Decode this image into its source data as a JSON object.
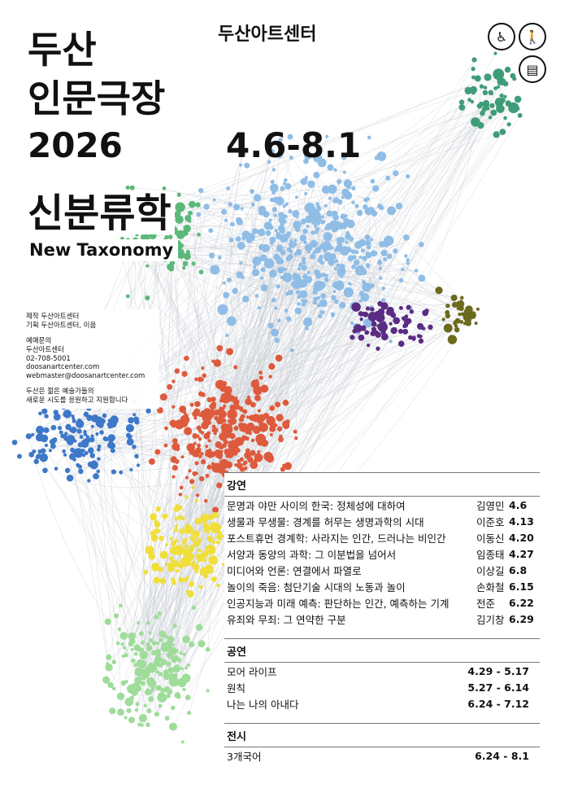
{
  "header": {
    "title_lines": [
      "두산",
      "인문극장",
      "2026"
    ],
    "organizer": "두산아트센터",
    "dates": "4.6-8.1",
    "theme_ko": "신분류학",
    "theme_en": "New Taxonomy"
  },
  "accessibility_icons": [
    "wheelchair-icon",
    "blind-cane-icon",
    "caption-icon"
  ],
  "info": {
    "credits": [
      "제작 두산아트센터",
      "기획 두산아트센터, 이음"
    ],
    "contact": [
      "예매문의",
      "두산아트센터",
      "02-708-5001",
      "doosanartcenter.com",
      "webmaster@doosanartcenter.com"
    ],
    "sponsor": [
      "두산은 젊은 예술가들의",
      "새로운 시도를 응원하고 지원합니다"
    ]
  },
  "program": {
    "lectures": {
      "heading": "강연",
      "items": [
        {
          "title": "문명과 야만 사이의 한국: 정체성에 대하여",
          "speaker": "김영민",
          "date": "4.6"
        },
        {
          "title": "생물과 무생물: 경계를 허무는 생명과학의 시대",
          "speaker": "이준호",
          "date": "4.13"
        },
        {
          "title": "포스트휴먼 경계학: 사라지는 인간, 드러나는 비인간",
          "speaker": "이동신",
          "date": "4.20"
        },
        {
          "title": "서양과 동양의 과학: 그 이분법을 넘어서",
          "speaker": "임종태",
          "date": "4.27"
        },
        {
          "title": "미디어와 언론: 연결에서 파열로",
          "speaker": "이상길",
          "date": "6.8"
        },
        {
          "title": "놀이의 죽음: 첨단기술 시대의 노동과 놀이",
          "speaker": "손화철",
          "date": "6.15"
        },
        {
          "title": "인공지능과 미래 예측: 판단하는 인간, 예측하는 기계",
          "speaker": "전준",
          "date": "6.22"
        },
        {
          "title": "유죄와 무죄: 그 연약한 구분",
          "speaker": "김기창",
          "date": "6.29"
        }
      ]
    },
    "performances": {
      "heading": "공연",
      "items": [
        {
          "title": "모어 라이프",
          "dates": "4.29 - 5.17"
        },
        {
          "title": "원칙",
          "dates": "5.27 - 6.14"
        },
        {
          "title": "나는 나의 아내다",
          "dates": "6.24 - 7.12"
        }
      ]
    },
    "exhibition": {
      "heading": "전시",
      "items": [
        {
          "title": "3개국어",
          "dates": "6.24 - 8.1"
        }
      ]
    }
  },
  "network_colors": {
    "blue": "#8fbde6",
    "green": "#5cb87a",
    "purple": "#5b2c83",
    "olive": "#6b6a1e",
    "blue_dark": "#3d78c9",
    "red": "#de5a3c",
    "yellow": "#f0df3a",
    "light_green": "#9fdc9a",
    "teal": "#3f9c78",
    "edge": "#c7ccd3"
  }
}
